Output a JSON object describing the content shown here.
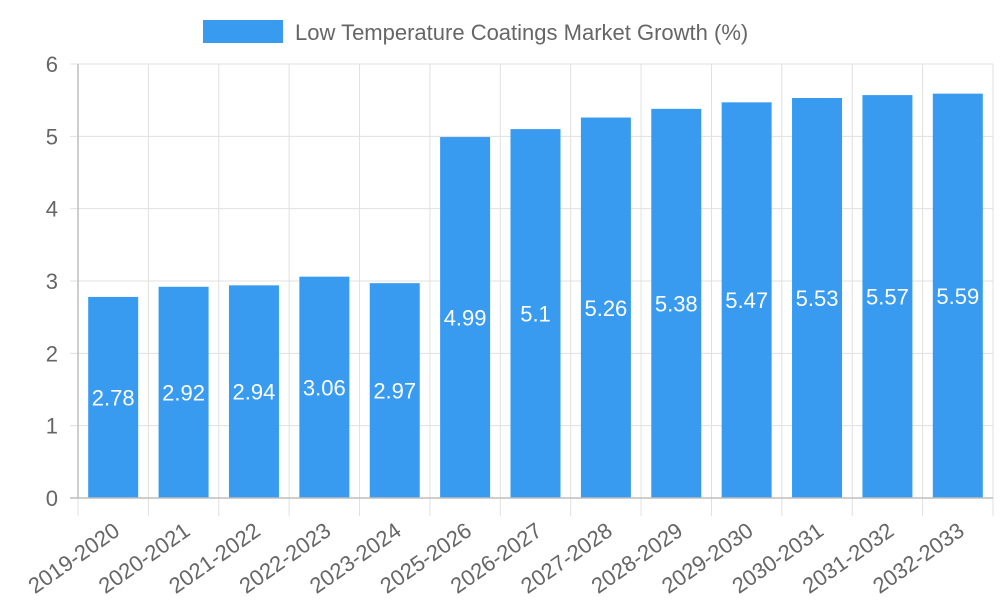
{
  "chart_data": {
    "type": "bar",
    "title": "",
    "xlabel": "",
    "ylabel": "",
    "legend": {
      "position": "top-center",
      "entries": [
        "Low Temperature Coatings Market Growth (%)"
      ]
    },
    "categories": [
      "2019-2020",
      "2020-2021",
      "2021-2022",
      "2022-2023",
      "2023-2024",
      "2025-2026",
      "2026-2027",
      "2027-2028",
      "2028-2029",
      "2029-2030",
      "2030-2031",
      "2031-2032",
      "2032-2033"
    ],
    "series": [
      {
        "name": "Low Temperature Coatings Market Growth (%)",
        "values": [
          2.78,
          2.92,
          2.94,
          3.06,
          2.97,
          4.99,
          5.1,
          5.26,
          5.38,
          5.47,
          5.53,
          5.57,
          5.59
        ],
        "color": "#389bf0"
      }
    ],
    "data_labels": [
      "2.78",
      "2.92",
      "2.94",
      "3.06",
      "2.97",
      "4.99",
      "5.1",
      "5.26",
      "5.38",
      "5.47",
      "5.53",
      "5.57",
      "5.59"
    ],
    "ylim": [
      0,
      6
    ],
    "yticks": [
      "0",
      "1",
      "2",
      "3",
      "4",
      "5",
      "6"
    ],
    "grid": true,
    "colors": {
      "bar": "#389bf0",
      "grid": "#e0e0e0",
      "axis": "#bdbdbd",
      "text": "#666666",
      "label_text": "#ffffff"
    }
  }
}
